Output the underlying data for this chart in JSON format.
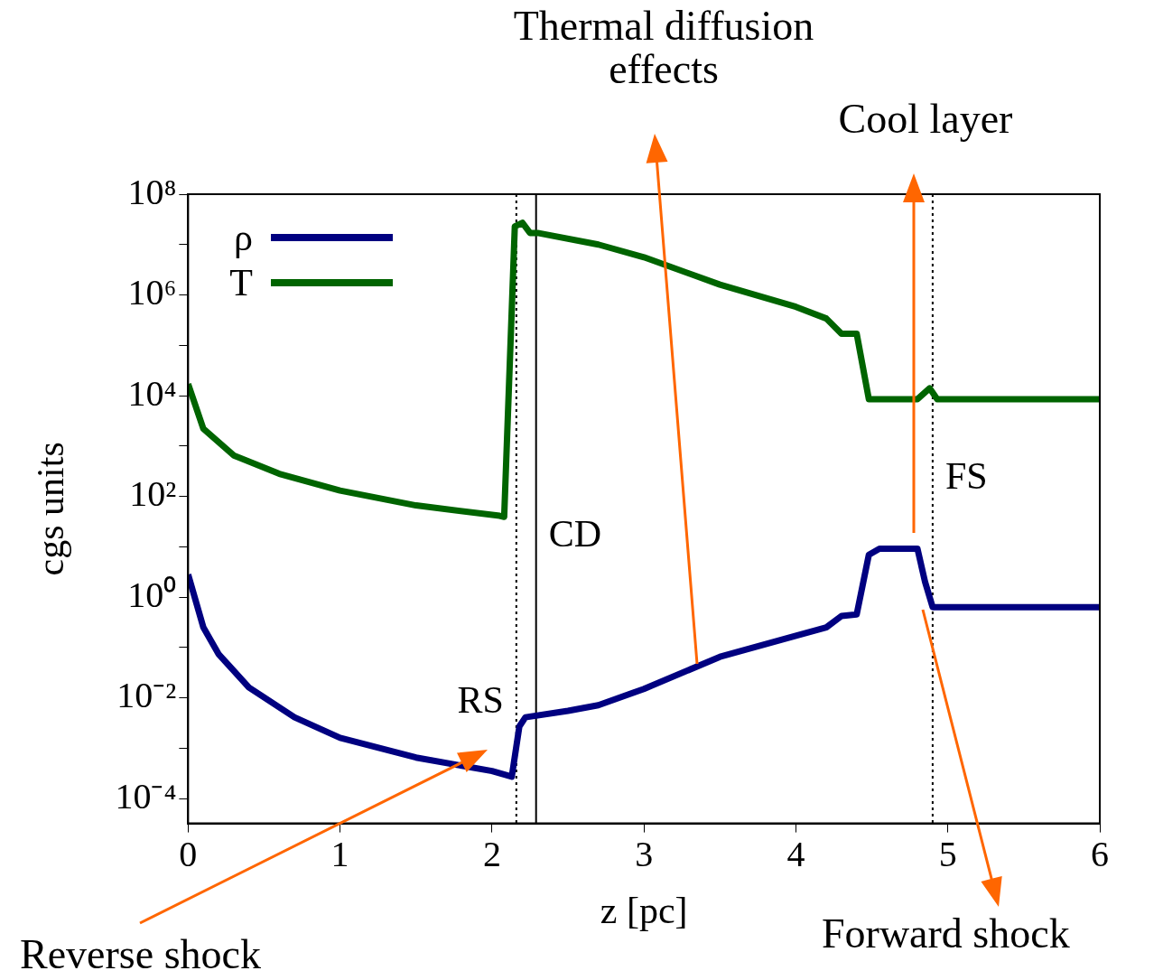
{
  "chart_data": {
    "type": "line",
    "xlabel": "z [pc]",
    "ylabel": "cgs units",
    "xlim": [
      0,
      6
    ],
    "xticks": [
      0,
      1,
      2,
      3,
      4,
      5,
      6
    ],
    "ylim": [
      3.2e-05,
      100000000
    ],
    "yticks": [
      {
        "value": 0.0001,
        "label": "10⁻⁴"
      },
      {
        "value": 0.001,
        "label": null
      },
      {
        "value": 0.01,
        "label": "10⁻²"
      },
      {
        "value": 0.1,
        "label": null
      },
      {
        "value": 1,
        "label": "10⁰"
      },
      {
        "value": 10,
        "label": null
      },
      {
        "value": 100,
        "label": "10²"
      },
      {
        "value": 1000,
        "label": null
      },
      {
        "value": 10000,
        "label": "10⁴"
      },
      {
        "value": 100000,
        "label": null
      },
      {
        "value": 1000000,
        "label": "10⁶"
      },
      {
        "value": 10000000,
        "label": null
      },
      {
        "value": 100000000,
        "label": "10⁸"
      }
    ],
    "log": "y",
    "grid": false,
    "legend": "top left",
    "line_style": "solid",
    "marker": "none",
    "series": [
      {
        "name": "ρ",
        "color": "#000080",
        "x": [
          0,
          0.1,
          0.2,
          0.4,
          0.7,
          1,
          1.5,
          2,
          2.13,
          2.18,
          2.22,
          2.5,
          2.7,
          3,
          3.5,
          4,
          4.2,
          4.3,
          4.4,
          4.48,
          4.55,
          4.8,
          4.85,
          4.9,
          6
        ],
        "values": [
          2.8,
          0.25,
          0.074,
          0.016,
          0.0041,
          0.0016,
          0.00065,
          0.00035,
          0.00027,
          0.0027,
          0.0041,
          0.0055,
          0.0071,
          0.015,
          0.065,
          0.17,
          0.25,
          0.42,
          0.45,
          6.9,
          9.1,
          9.1,
          2,
          0.63,
          0.63
        ]
      },
      {
        "name": "T",
        "color": "#006400",
        "x": [
          0,
          0.1,
          0.3,
          0.6,
          1,
          1.5,
          2.05,
          2.08,
          2.15,
          2.2,
          2.25,
          2.3,
          2.7,
          3,
          3.5,
          4,
          4.2,
          4.3,
          4.4,
          4.48,
          4.8,
          4.88,
          4.93,
          6
        ],
        "values": [
          17000,
          2200,
          650,
          280,
          130,
          66,
          41,
          39,
          23000000,
          27000000,
          17000000,
          17000000,
          10000000,
          5600000,
          1600000,
          580000,
          340000,
          170000,
          170000,
          8500,
          8500,
          14000,
          8500,
          8500
        ]
      }
    ],
    "ref_lines": [
      {
        "axis": "x",
        "value": 2.16,
        "label": "RS",
        "color": "#000000",
        "line_style": "dotted"
      },
      {
        "axis": "x",
        "value": 2.29,
        "label": "CD",
        "color": "#000000",
        "line_style": "solid"
      },
      {
        "axis": "x",
        "value": 4.9,
        "label": "FS",
        "color": "#000000",
        "line_style": "dotted"
      }
    ],
    "annotations": [
      "Thermal diffusion effects",
      "Cool layer",
      "Reverse shock",
      "Forward shock"
    ]
  }
}
